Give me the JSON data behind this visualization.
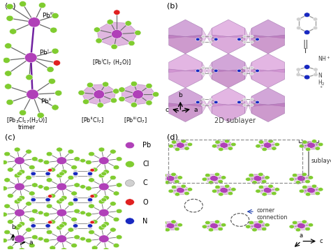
{
  "panel_label_fontsize": 8,
  "background_color": "#ffffff",
  "pb_color": "#b040b8",
  "cl_color": "#80cc30",
  "o_color": "#e02020",
  "n_color": "#1828c0",
  "c_color": "#d0d0d0",
  "bond_color_gray": "#686868",
  "bond_color_pb": "#9030a0",
  "poly_face_color": "#cc88cc",
  "poly_face_color2": "#e0b0e0",
  "poly_edge_color": "#a060a8",
  "poly_face_alpha": 0.65,
  "legend_items": [
    {
      "label": "Pb",
      "color": "#b040b8"
    },
    {
      "label": "Cl",
      "color": "#80cc30"
    },
    {
      "label": "C",
      "color": "#d0d0d0"
    },
    {
      "label": "O",
      "color": "#e02020"
    },
    {
      "label": "N",
      "color": "#1828c0"
    }
  ]
}
